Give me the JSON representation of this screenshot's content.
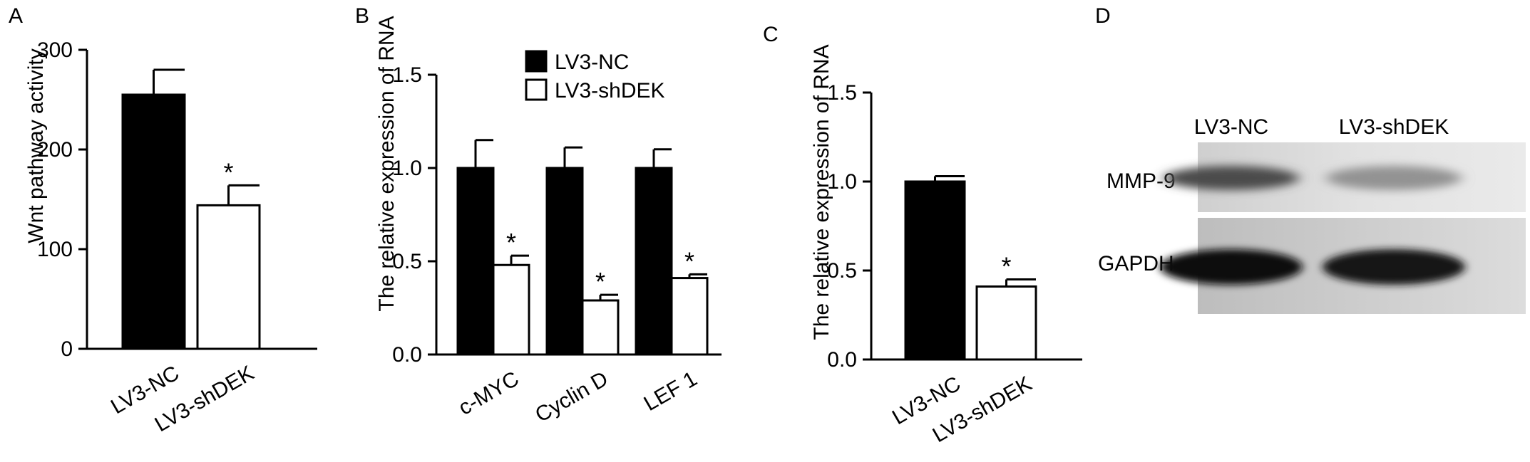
{
  "panels": [
    {
      "letter": "A"
    },
    {
      "letter": "B"
    },
    {
      "letter": "C"
    },
    {
      "letter": "D"
    }
  ],
  "colors": {
    "nc_fill": "#000000",
    "shdek_fill": "#ffffff",
    "axis": "#000000"
  },
  "chart_data": [
    {
      "panel": "A",
      "type": "bar",
      "ylabel": "Wnt pathway activity",
      "ylim": [
        0,
        300
      ],
      "yticks": [
        "0",
        "100",
        "200",
        "300"
      ],
      "categories": [
        "LV3-NC",
        "LV3-shDEK"
      ],
      "values": [
        255,
        144
      ],
      "errors": [
        25,
        20
      ],
      "significance": [
        "",
        "*"
      ]
    },
    {
      "panel": "B",
      "type": "bar",
      "ylabel": "The relative expression of RNA",
      "ylim": [
        0,
        1.5
      ],
      "yticks": [
        "0.0",
        "0.5",
        "1.0",
        "1.5"
      ],
      "categories": [
        "c-MYC",
        "Cyclin D",
        "LEF 1"
      ],
      "legend": {
        "position": "top-left"
      },
      "series": [
        {
          "name": "LV3-NC",
          "values": [
            1.0,
            1.0,
            1.0
          ],
          "errors": [
            0.15,
            0.11,
            0.1
          ],
          "significance": [
            "",
            "",
            ""
          ]
        },
        {
          "name": "LV3-shDEK",
          "values": [
            0.48,
            0.29,
            0.41
          ],
          "errors": [
            0.05,
            0.03,
            0.02
          ],
          "significance": [
            "*",
            "*",
            "*"
          ]
        }
      ]
    },
    {
      "panel": "C",
      "type": "bar",
      "ylabel": "The relative expression of RNA",
      "ylim": [
        0,
        1.5
      ],
      "yticks": [
        "0.0",
        "0.5",
        "1.0",
        "1.5"
      ],
      "categories": [
        "LV3-NC",
        "LV3-shDEK"
      ],
      "values": [
        1.0,
        0.41
      ],
      "errors": [
        0.03,
        0.04
      ],
      "significance": [
        "",
        "*"
      ]
    }
  ],
  "blot": {
    "lanes": [
      "LV3-NC",
      "LV3-shDEK"
    ],
    "rows": [
      {
        "label": "MMP-9",
        "intensity": [
          0.75,
          0.45
        ]
      },
      {
        "label": "GAPDH",
        "intensity": [
          1.0,
          0.98
        ]
      }
    ]
  }
}
